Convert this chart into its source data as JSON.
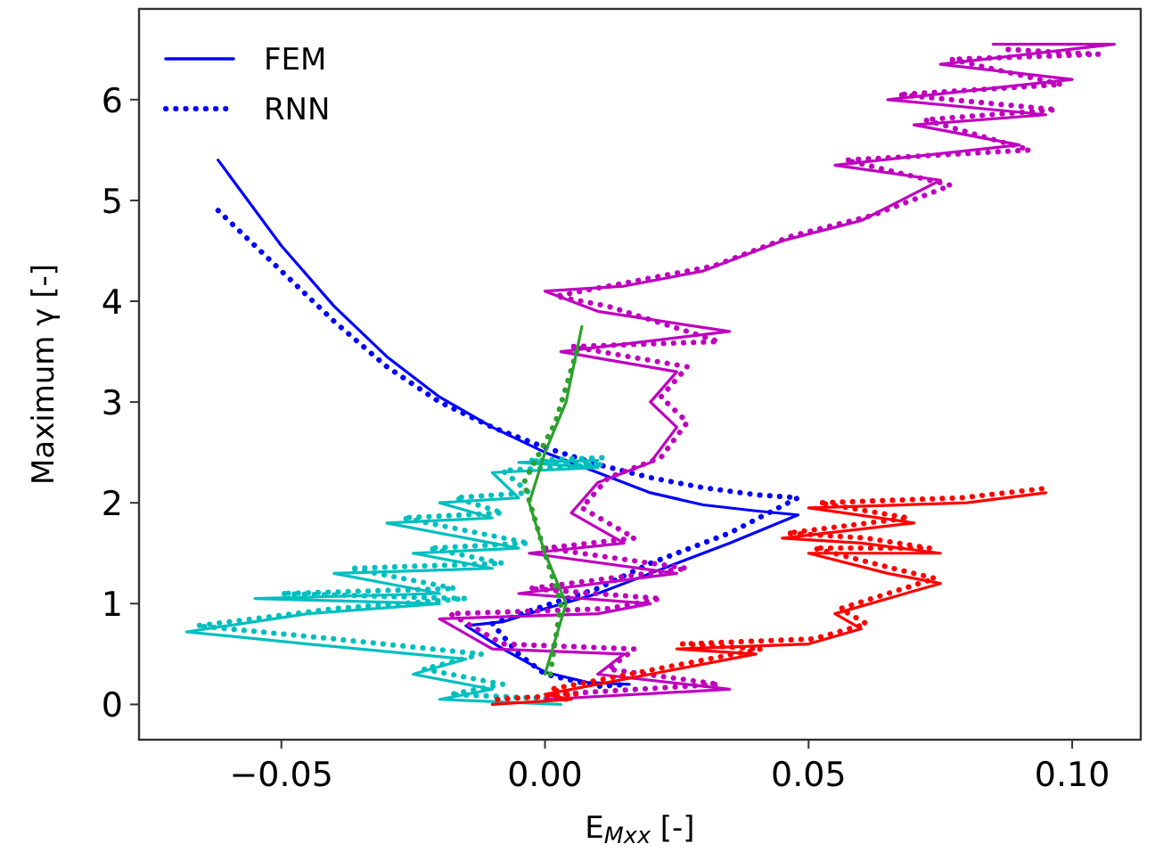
{
  "chart_data": {
    "type": "line",
    "xlabel": "E$_{Mxx}$ [-]",
    "ylabel": "Maximum γ [-]",
    "xlim": [
      -0.077,
      0.113
    ],
    "ylim": [
      -0.35,
      6.9
    ],
    "xticks": [
      {
        "value": -0.05,
        "label": "−0.05"
      },
      {
        "value": 0,
        "label": "0.00"
      },
      {
        "value": 0.05,
        "label": "0.05"
      },
      {
        "value": 0.1,
        "label": "0.10"
      }
    ],
    "yticks": [
      0,
      1,
      2,
      3,
      4,
      5,
      6
    ],
    "grid": false,
    "legend": "top left",
    "series": [
      {
        "name": "FEM",
        "color": "#0000ff",
        "line_style": "solid",
        "x": [
          -0.062,
          -0.05,
          -0.04,
          -0.03,
          -0.02,
          -0.01,
          0.0,
          0.01,
          0.02,
          0.03,
          0.04,
          0.048,
          0.035,
          0.02,
          0.01,
          0.0,
          -0.008,
          -0.015,
          -0.008,
          0.0,
          0.008,
          0.016
        ],
        "values": [
          5.4,
          4.55,
          3.95,
          3.45,
          3.05,
          2.75,
          2.5,
          2.3,
          2.1,
          1.98,
          1.92,
          1.88,
          1.6,
          1.3,
          1.1,
          0.95,
          0.82,
          0.78,
          0.55,
          0.32,
          0.22,
          0.2
        ]
      },
      {
        "name": "RNN",
        "color": "#0000ff",
        "line_style": "dotted",
        "x": [
          -0.062,
          -0.05,
          -0.04,
          -0.03,
          -0.02,
          -0.01,
          0.0,
          0.01,
          0.02,
          0.03,
          0.04,
          0.048,
          0.035,
          0.02,
          0.01,
          0.0,
          -0.01,
          -0.005,
          0.0,
          0.01,
          0.016
        ],
        "values": [
          4.9,
          4.3,
          3.8,
          3.35,
          3.0,
          2.75,
          2.55,
          2.38,
          2.25,
          2.15,
          2.08,
          2.05,
          1.7,
          1.4,
          1.15,
          0.98,
          0.8,
          0.5,
          0.3,
          0.18,
          0.2
        ]
      },
      {
        "color": "#00bfbf",
        "line_style": "solid",
        "x": [
          0.003,
          -0.02,
          -0.01,
          -0.025,
          -0.015,
          -0.045,
          -0.068,
          -0.045,
          -0.02,
          -0.055,
          -0.02,
          -0.04,
          -0.01,
          -0.025,
          -0.005,
          -0.03,
          -0.01,
          -0.02,
          -0.005,
          -0.01,
          0.01,
          -0.005,
          0.01
        ],
        "values": [
          0.0,
          0.05,
          0.15,
          0.3,
          0.45,
          0.6,
          0.72,
          0.9,
          1.0,
          1.05,
          1.1,
          1.3,
          1.35,
          1.5,
          1.55,
          1.8,
          1.85,
          2.0,
          2.05,
          2.3,
          2.35,
          2.4,
          2.42
        ]
      },
      {
        "color": "#00bfbf",
        "line_style": "dotted",
        "x": [
          0.004,
          -0.018,
          -0.008,
          -0.023,
          -0.012,
          -0.04,
          -0.066,
          -0.04,
          -0.015,
          -0.05,
          -0.017,
          -0.037,
          -0.008,
          -0.022,
          -0.003,
          -0.027,
          -0.008,
          -0.017,
          -0.003,
          -0.008,
          0.011,
          -0.003,
          0.012
        ],
        "values": [
          0.05,
          0.1,
          0.2,
          0.35,
          0.5,
          0.65,
          0.78,
          0.95,
          1.05,
          1.1,
          1.15,
          1.35,
          1.4,
          1.55,
          1.6,
          1.85,
          1.9,
          2.05,
          2.1,
          2.32,
          2.38,
          2.42,
          2.45
        ]
      },
      {
        "color": "#bf00bf",
        "line_style": "solid",
        "x": [
          0.0,
          0.035,
          0.01,
          0.015,
          -0.01,
          -0.02,
          0.01,
          0.02,
          -0.005,
          0.025,
          -0.003,
          0.015,
          0.005,
          0.01,
          0.02,
          0.025,
          0.02,
          0.025,
          0.003,
          0.035,
          0.01,
          0.0,
          0.015,
          0.03,
          0.045,
          0.06,
          0.075,
          0.055,
          0.09,
          0.07,
          0.095,
          0.065,
          0.1,
          0.075,
          0.108,
          0.085
        ],
        "values": [
          0.05,
          0.15,
          0.3,
          0.5,
          0.55,
          0.85,
          0.9,
          1.0,
          1.1,
          1.3,
          1.5,
          1.6,
          1.9,
          2.2,
          2.4,
          2.75,
          3.0,
          3.3,
          3.5,
          3.7,
          3.9,
          4.1,
          4.15,
          4.3,
          4.6,
          4.8,
          5.2,
          5.35,
          5.55,
          5.75,
          5.85,
          6.0,
          6.2,
          6.35,
          6.55,
          6.55
        ]
      },
      {
        "color": "#bf00bf",
        "line_style": "dotted",
        "x": [
          0.002,
          0.033,
          0.012,
          0.017,
          -0.008,
          -0.018,
          0.012,
          0.022,
          -0.003,
          0.027,
          0.0,
          0.017,
          0.007,
          0.012,
          0.022,
          0.027,
          0.022,
          0.027,
          0.005,
          0.033,
          0.012,
          0.002,
          0.017,
          0.032,
          0.047,
          0.062,
          0.077,
          0.057,
          0.092,
          0.072,
          0.097,
          0.067,
          0.098,
          0.077,
          0.105,
          0.087
        ],
        "values": [
          0.1,
          0.2,
          0.35,
          0.55,
          0.6,
          0.9,
          0.95,
          1.05,
          1.15,
          1.35,
          1.55,
          1.65,
          1.95,
          2.25,
          2.45,
          2.8,
          3.05,
          3.35,
          3.55,
          3.6,
          3.95,
          4.05,
          4.2,
          4.35,
          4.65,
          4.85,
          5.15,
          5.4,
          5.5,
          5.8,
          5.9,
          6.05,
          6.15,
          6.4,
          6.45,
          6.5
        ]
      },
      {
        "color": "#ff0000",
        "line_style": "solid",
        "x": [
          -0.01,
          0.005,
          0.0,
          0.02,
          0.04,
          0.025,
          0.05,
          0.06,
          0.055,
          0.075,
          0.065,
          0.05,
          0.075,
          0.06,
          0.045,
          0.07,
          0.05,
          0.08,
          0.095
        ],
        "values": [
          0.0,
          0.05,
          0.1,
          0.3,
          0.5,
          0.55,
          0.6,
          0.75,
          0.9,
          1.2,
          1.3,
          1.5,
          1.5,
          1.6,
          1.65,
          1.8,
          1.95,
          2.0,
          2.1
        ]
      },
      {
        "color": "#ff0000",
        "line_style": "dotted",
        "x": [
          -0.009,
          0.006,
          0.001,
          0.021,
          0.041,
          0.026,
          0.051,
          0.061,
          0.056,
          0.074,
          0.066,
          0.051,
          0.073,
          0.061,
          0.046,
          0.069,
          0.052,
          0.079,
          0.096
        ],
        "values": [
          0.05,
          0.1,
          0.15,
          0.35,
          0.55,
          0.6,
          0.65,
          0.8,
          0.95,
          1.25,
          1.35,
          1.55,
          1.55,
          1.65,
          1.7,
          1.85,
          2.0,
          2.05,
          2.15
        ]
      },
      {
        "color": "#2ca02c",
        "line_style": "solid",
        "x": [
          0.0,
          0.004,
          0.0,
          -0.003,
          0.0,
          0.004,
          0.007
        ],
        "values": [
          0.3,
          1.0,
          1.5,
          2.0,
          2.5,
          3.0,
          3.75
        ]
      },
      {
        "color": "#2ca02c",
        "line_style": "dotted",
        "x": [
          0.001,
          0.003,
          0.0,
          -0.004,
          0.002,
          0.006
        ],
        "values": [
          0.3,
          1.0,
          1.5,
          2.2,
          2.8,
          3.5
        ]
      }
    ]
  }
}
